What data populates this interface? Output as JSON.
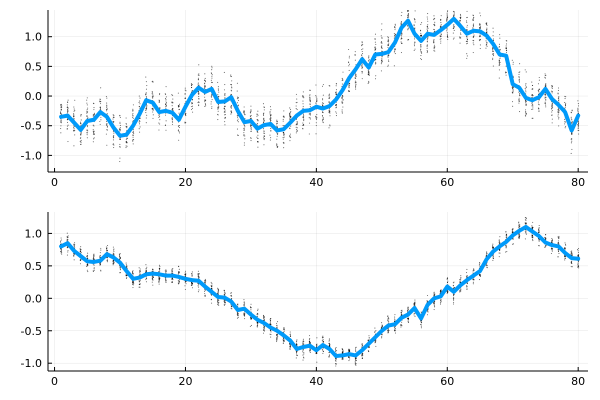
{
  "colors": {
    "series": "#009AFA",
    "samples": "#000000"
  },
  "chart_data": [
    {
      "type": "line",
      "title": "",
      "xlabel": "",
      "ylabel": "",
      "xlim": [
        -1,
        81.5
      ],
      "ylim": [
        -1.28,
        1.45
      ],
      "grid": true,
      "legend": "none",
      "x_ticks": [
        0,
        20,
        40,
        60,
        80
      ],
      "x_tick_labels": [
        "0",
        "20",
        "40",
        "60",
        "80"
      ],
      "y_ticks": [
        -1.0,
        -0.5,
        0.0,
        0.5,
        1.0
      ],
      "y_tick_labels": [
        "-1.0",
        "-0.5",
        "0.0",
        "0.5",
        "1.0"
      ],
      "sample_spread": 0.33,
      "series": [
        {
          "x": [
            1,
            2,
            3,
            4,
            5,
            6,
            7,
            8,
            9,
            10,
            11,
            12,
            13,
            14,
            15,
            16,
            17,
            18,
            19,
            20,
            21,
            22,
            23,
            24,
            25,
            26,
            27,
            28,
            29,
            30,
            31,
            32,
            33,
            34,
            35,
            36,
            37,
            38,
            39,
            40,
            41,
            42,
            43,
            44,
            45,
            46,
            47,
            48,
            49,
            50,
            51,
            52,
            53,
            54,
            55,
            56,
            57,
            58,
            59,
            60,
            61,
            62,
            63,
            64,
            65,
            66,
            67,
            68,
            69,
            70,
            71,
            72,
            73,
            74,
            75,
            76,
            77,
            78,
            79,
            80
          ],
          "values": [
            -0.35,
            -0.33,
            -0.45,
            -0.57,
            -0.42,
            -0.4,
            -0.27,
            -0.35,
            -0.53,
            -0.67,
            -0.65,
            -0.5,
            -0.3,
            -0.07,
            -0.11,
            -0.27,
            -0.25,
            -0.28,
            -0.4,
            -0.18,
            0.02,
            0.14,
            0.07,
            0.12,
            -0.1,
            -0.09,
            -0.02,
            -0.25,
            -0.44,
            -0.42,
            -0.55,
            -0.49,
            -0.47,
            -0.58,
            -0.56,
            -0.45,
            -0.33,
            -0.25,
            -0.24,
            -0.18,
            -0.21,
            -0.17,
            -0.06,
            0.1,
            0.3,
            0.45,
            0.62,
            0.48,
            0.7,
            0.71,
            0.74,
            0.9,
            1.15,
            1.27,
            1.05,
            0.93,
            1.05,
            1.03,
            1.11,
            1.2,
            1.3,
            1.18,
            1.05,
            1.1,
            1.09,
            1.02,
            0.88,
            0.7,
            0.68,
            0.2,
            0.14,
            -0.03,
            -0.07,
            -0.02,
            0.12,
            -0.05,
            -0.15,
            -0.27,
            -0.58,
            -0.33
          ]
        }
      ]
    },
    {
      "type": "line",
      "title": "",
      "xlabel": "",
      "ylabel": "",
      "xlim": [
        -1,
        81.5
      ],
      "ylim": [
        -1.12,
        1.33
      ],
      "grid": true,
      "legend": "none",
      "x_ticks": [
        0,
        20,
        40,
        60,
        80
      ],
      "x_tick_labels": [
        "0",
        "20",
        "40",
        "60",
        "80"
      ],
      "y_ticks": [
        -1.0,
        -0.5,
        0.0,
        0.5,
        1.0
      ],
      "y_tick_labels": [
        "-1.0",
        "-0.5",
        "0.0",
        "0.5",
        "1.0"
      ],
      "sample_spread": 0.14,
      "series": [
        {
          "x": [
            1,
            2,
            3,
            4,
            5,
            6,
            7,
            8,
            9,
            10,
            11,
            12,
            13,
            14,
            15,
            16,
            17,
            18,
            19,
            20,
            21,
            22,
            23,
            24,
            25,
            26,
            27,
            28,
            29,
            30,
            31,
            32,
            33,
            34,
            35,
            36,
            37,
            38,
            39,
            40,
            41,
            42,
            43,
            44,
            45,
            46,
            47,
            48,
            49,
            50,
            51,
            52,
            53,
            54,
            55,
            56,
            57,
            58,
            59,
            60,
            61,
            62,
            63,
            64,
            65,
            66,
            67,
            68,
            69,
            70,
            71,
            72,
            73,
            74,
            75,
            76,
            77,
            78,
            79,
            80
          ],
          "values": [
            0.8,
            0.85,
            0.73,
            0.65,
            0.57,
            0.56,
            0.58,
            0.68,
            0.63,
            0.55,
            0.42,
            0.3,
            0.32,
            0.37,
            0.38,
            0.37,
            0.35,
            0.35,
            0.33,
            0.3,
            0.28,
            0.27,
            0.18,
            0.1,
            0.02,
            0.01,
            -0.05,
            -0.18,
            -0.16,
            -0.25,
            -0.33,
            -0.38,
            -0.45,
            -0.5,
            -0.57,
            -0.65,
            -0.78,
            -0.75,
            -0.73,
            -0.8,
            -0.72,
            -0.78,
            -0.89,
            -0.88,
            -0.86,
            -0.88,
            -0.8,
            -0.7,
            -0.6,
            -0.5,
            -0.42,
            -0.4,
            -0.3,
            -0.25,
            -0.15,
            -0.31,
            -0.1,
            0.0,
            0.03,
            0.18,
            0.1,
            0.2,
            0.28,
            0.35,
            0.42,
            0.6,
            0.72,
            0.8,
            0.87,
            0.97,
            1.04,
            1.1,
            1.03,
            0.96,
            0.86,
            0.82,
            0.8,
            0.7,
            0.62,
            0.61
          ]
        }
      ]
    }
  ]
}
